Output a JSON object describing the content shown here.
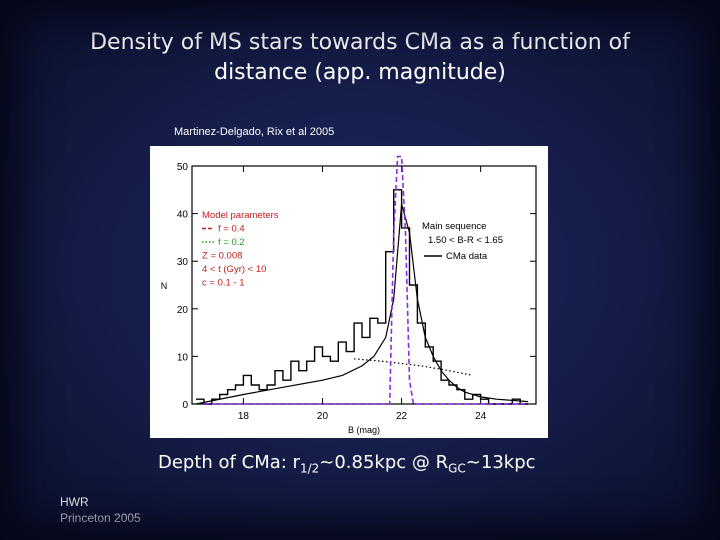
{
  "slide": {
    "title_line1": "Density of MS stars towards CMa as a function of",
    "title_line2": "distance (app. magnitude)",
    "citation": "Martinez-Delgado, Rix et al 2005",
    "caption": {
      "prefix": "Depth of CMa: r",
      "r_sub": "1/2",
      "middle": "~0.85kpc @ R",
      "R_sub": "GC",
      "suffix": "~13kpc"
    },
    "footer_line1": "HWR",
    "footer_line2": "Princeton  2005"
  },
  "chart_data": {
    "type": "line",
    "xlabel": "B (mag)",
    "ylabel": "N",
    "xlim": [
      16.7,
      25.4
    ],
    "ylim": [
      0,
      50
    ],
    "xticks": [
      18,
      20,
      22,
      24
    ],
    "yticks": [
      0,
      10,
      20,
      30,
      40,
      50
    ],
    "legend_left": {
      "title": "Model parameters",
      "entries": [
        {
          "label": "f = 0.4",
          "color": "#c02020",
          "style": "dashed"
        },
        {
          "label": "f = 0.2",
          "color": "#20a020",
          "style": "dotted"
        },
        {
          "label": "Z = 0.008",
          "color": "#c02020",
          "style": "text"
        },
        {
          "label": "4 < t (Gyr) < 10",
          "color": "#c02020",
          "style": "text"
        },
        {
          "label": "c = 0.1 - 1",
          "color": "#c02020",
          "style": "text"
        }
      ]
    },
    "legend_right": {
      "title": "Main sequence",
      "subtitle": "1.50 < B-R < 1.65",
      "entries": [
        {
          "label": "CMa data",
          "color": "#000000",
          "style": "solid"
        }
      ]
    },
    "series": [
      {
        "name": "CMa data",
        "style": "step",
        "color": "#000000",
        "x": [
          16.9,
          17.1,
          17.3,
          17.5,
          17.7,
          17.9,
          18.1,
          18.3,
          18.5,
          18.7,
          18.9,
          19.1,
          19.3,
          19.5,
          19.7,
          19.9,
          20.1,
          20.3,
          20.5,
          20.7,
          20.9,
          21.1,
          21.3,
          21.5,
          21.7,
          21.9,
          22.1,
          22.3,
          22.5,
          22.7,
          22.9,
          23.1,
          23.3,
          23.5,
          23.7,
          23.9,
          24.1,
          24.3,
          24.5,
          24.7,
          24.9,
          25.1
        ],
        "values": [
          1,
          0,
          1,
          2,
          3,
          4,
          6,
          4,
          3,
          4,
          7,
          5,
          9,
          7,
          9,
          12,
          10,
          9,
          13,
          11,
          17,
          14,
          18,
          17,
          32,
          45,
          37,
          25,
          17,
          12,
          9,
          5,
          4,
          3,
          1,
          2,
          1,
          0,
          0,
          0,
          1,
          0
        ]
      },
      {
        "name": "",
        "style": "solid",
        "color": "#000000",
        "x": [
          16.8,
          18,
          19,
          20,
          20.5,
          21,
          21.3,
          21.6,
          21.8,
          22.0,
          22.2,
          22.4,
          22.6,
          22.8,
          23.0,
          23.2,
          23.4,
          23.6,
          24,
          24.4,
          25.2
        ],
        "values": [
          0,
          2,
          3.5,
          5,
          6,
          8,
          10,
          14,
          22,
          42,
          36,
          22,
          14,
          10,
          7,
          5,
          3.5,
          2.5,
          1.5,
          1,
          0.5
        ]
      },
      {
        "name": "",
        "style": "dotted",
        "color": "#000000",
        "x": [
          20.8,
          21.5,
          22.5,
          23.2,
          23.8
        ],
        "values": [
          9.5,
          9,
          8,
          7,
          6
        ]
      },
      {
        "name": "",
        "style": "dashed",
        "color": "#8a2be2",
        "x": [
          17.0,
          21.0,
          21.7,
          21.8,
          21.9,
          22.0,
          22.1,
          22.2,
          22.3,
          22.4,
          25.2
        ],
        "values": [
          0,
          0,
          0,
          36,
          52,
          52,
          36,
          5,
          0,
          0,
          0
        ]
      }
    ]
  }
}
